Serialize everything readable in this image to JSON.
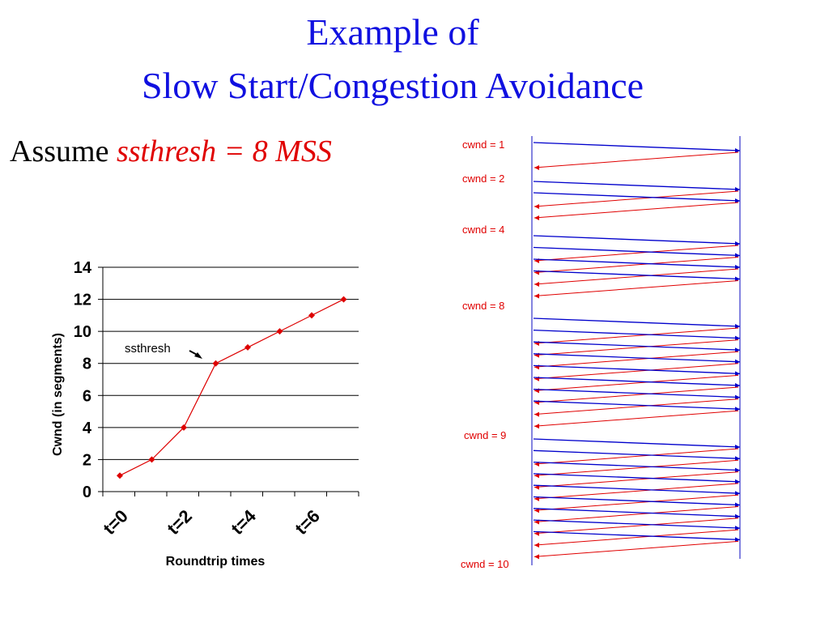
{
  "slide": {
    "title_line1": "Example  of",
    "title_line2": "Slow Start/Congestion Avoidance",
    "assume_prefix": "Assume ",
    "assume_highlight": "ssthresh = 8 MSS",
    "colors": {
      "title": "#1010e0",
      "highlight": "#e00000",
      "data_segment": "#0000cc",
      "ack": "#e00000",
      "series": "#dd0000"
    }
  },
  "chart_data": {
    "type": "line",
    "x": [
      0,
      1,
      2,
      3,
      4,
      5,
      6,
      7
    ],
    "series": [
      {
        "values": [
          1,
          2,
          4,
          8,
          9,
          10,
          11,
          12
        ]
      }
    ],
    "ylim": [
      0,
      14
    ],
    "yticks": [
      0,
      2,
      4,
      6,
      8,
      10,
      12,
      14
    ],
    "xticks": [
      {
        "x": 0,
        "label": "t=0"
      },
      {
        "x": 2,
        "label": "t=2"
      },
      {
        "x": 4,
        "label": "t=4"
      },
      {
        "x": 6,
        "label": "t=6"
      }
    ],
    "xlabel": "Roundtrip times",
    "ylabel": "Cwnd (in segments)",
    "grid": "horizontal",
    "annotation": {
      "text": "ssthresh",
      "x": 3,
      "y": 8
    }
  },
  "timeline": {
    "labels": [
      "cwnd = 1",
      "cwnd = 2",
      "cwnd = 4",
      "cwnd = 8",
      "cwnd = 9",
      "cwnd = 10"
    ],
    "round_segment_counts": [
      1,
      2,
      4,
      8,
      9
    ]
  }
}
